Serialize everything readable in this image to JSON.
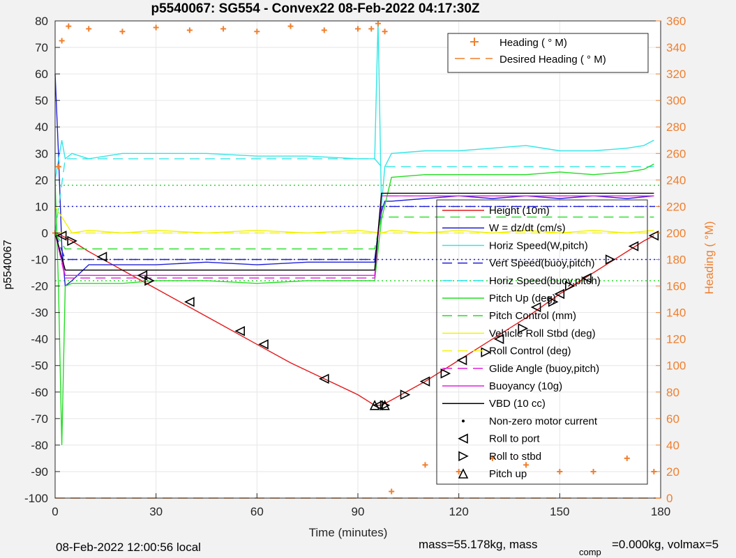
{
  "footer": {
    "local_time": "08-Feb-2022 12:00:56 local",
    "mass_text": "mass=55.178kg, mass",
    "comp_sub": "comp",
    "comp_text": "=0.000kg, volmax=5"
  },
  "chart_data": {
    "type": "line",
    "title": "p5540067: SG554 - Convex22 08-Feb-2022 04:17:30Z",
    "xlabel": "Time (minutes)",
    "ylabel": "p5540067",
    "y2label": "Heading (  °M)",
    "xlim": [
      0,
      180
    ],
    "ylim": [
      -100,
      80
    ],
    "y2lim": [
      0,
      360
    ],
    "xticks": [
      "0",
      "30",
      "60",
      "90",
      "120",
      "150",
      "180"
    ],
    "yticks": [
      "-100",
      "-90",
      "-80",
      "-70",
      "-60",
      "-50",
      "-40",
      "-30",
      "-20",
      "-10",
      "0",
      "10",
      "20",
      "30",
      "40",
      "50",
      "60",
      "70",
      "80"
    ],
    "y2ticks": [
      "0",
      "20",
      "40",
      "60",
      "80",
      "100",
      "120",
      "140",
      "160",
      "180",
      "200",
      "220",
      "240",
      "260",
      "280",
      "300",
      "320",
      "340",
      "360"
    ],
    "grid": true,
    "legend_top": [
      {
        "name": "Heading (  ° M)",
        "color": "#f07f2d",
        "style": "plus"
      },
      {
        "name": "Desired Heading (    ° M)",
        "color": "#f07f2d",
        "style": "dashed"
      }
    ],
    "legend": [
      {
        "name": "Height (10m)",
        "color": "#e31a1c",
        "style": "solid"
      },
      {
        "name": "W = dz/dt (cm/s)",
        "color": "#1f1fd6",
        "style": "solid"
      },
      {
        "name": "Horiz Speed(W,pitch)",
        "color": "#33e6e6",
        "style": "solid"
      },
      {
        "name": "Vert Speed(buoy,pitch)",
        "color": "#1f1fd6",
        "style": "dashed"
      },
      {
        "name": "Horiz Speed(buoy,pitch)",
        "color": "#33e6e6",
        "style": "dashed"
      },
      {
        "name": "Pitch Up (deg)",
        "color": "#22dd22",
        "style": "solid"
      },
      {
        "name": "Pitch Control (mm)",
        "color": "#22dd22",
        "style": "dashed"
      },
      {
        "name": "Vehicle Roll Stbd (deg)",
        "color": "#f2f200",
        "style": "solid"
      },
      {
        "name": "Roll Control (deg)",
        "color": "#f2f200",
        "style": "dashed"
      },
      {
        "name": "Glide Angle (buoy,pitch)",
        "color": "#e020e0",
        "style": "dashed"
      },
      {
        "name": "Buoyancy (10g)",
        "color": "#e020e0",
        "style": "solid"
      },
      {
        "name": "VBD (10 cc)",
        "color": "#000000",
        "style": "solid"
      },
      {
        "name": "Non-zero motor current",
        "color": "#000000",
        "style": "dot"
      },
      {
        "name": "Roll to port",
        "color": "#000000",
        "style": "tri-left"
      },
      {
        "name": "Roll to stbd",
        "color": "#000000",
        "style": "tri-right"
      },
      {
        "name": "Pitch up",
        "color": "#000000",
        "style": "tri-up"
      }
    ],
    "series": [
      {
        "name": "Height (10m)",
        "x": [
          0,
          2,
          5,
          10,
          20,
          30,
          40,
          50,
          60,
          70,
          80,
          90,
          95,
          97,
          100,
          110,
          120,
          130,
          140,
          150,
          160,
          170,
          175,
          178
        ],
        "y": [
          0,
          -1,
          -3,
          -7,
          -14,
          -21,
          -28,
          -35,
          -42,
          -49,
          -55,
          -61,
          -65,
          -65,
          -63,
          -56,
          -48,
          -40,
          -32,
          -23,
          -15,
          -7,
          -3,
          -1
        ]
      },
      {
        "name": "W = dz/dt (cm/s)",
        "x": [
          0,
          1,
          2,
          3,
          5,
          10,
          20,
          30,
          45,
          60,
          75,
          90,
          95,
          96,
          97,
          98,
          100,
          110,
          120,
          130,
          140,
          150,
          160,
          170,
          178
        ],
        "y": [
          60,
          30,
          -5,
          -20,
          -18,
          -12,
          -12,
          -12,
          -11,
          -12,
          -11,
          -11,
          -11,
          0,
          8,
          12,
          12,
          13,
          14,
          13,
          14,
          13,
          14,
          13,
          14
        ]
      },
      {
        "name": "Horiz Speed(W,pitch)",
        "x": [
          0,
          2,
          3,
          5,
          10,
          20,
          30,
          45,
          60,
          75,
          90,
          95,
          96,
          97,
          98,
          100,
          110,
          120,
          130,
          140,
          150,
          160,
          170,
          175,
          178
        ],
        "y": [
          20,
          35,
          28,
          30,
          28,
          30,
          30,
          30,
          29,
          29,
          28,
          28,
          80,
          10,
          25,
          30,
          31,
          31,
          32,
          33,
          31,
          31,
          32,
          33,
          35
        ]
      },
      {
        "name": "Vert Speed(buoy,pitch)",
        "x": [
          0,
          3,
          95,
          97,
          178
        ],
        "y": [
          0,
          -10,
          -10,
          10,
          10
        ]
      },
      {
        "name": "Horiz Speed(buoy,pitch)",
        "x": [
          0,
          3,
          95,
          97,
          178
        ],
        "y": [
          0,
          28,
          28,
          25,
          25
        ]
      },
      {
        "name": "Pitch Up (deg)",
        "x": [
          0,
          1,
          2,
          3,
          5,
          10,
          20,
          30,
          45,
          60,
          75,
          90,
          95,
          97,
          100,
          110,
          120,
          130,
          140,
          150,
          160,
          170,
          175,
          178
        ],
        "y": [
          20,
          -20,
          -80,
          -20,
          -19,
          -19,
          -19,
          -18,
          -18,
          -19,
          -18,
          -18,
          -18,
          5,
          21,
          22,
          22,
          22,
          22,
          23,
          22,
          23,
          24,
          26
        ]
      },
      {
        "name": "Pitch Control (mm)",
        "x": [
          0,
          3,
          95,
          97,
          178
        ],
        "y": [
          0,
          -6,
          -6,
          6,
          6
        ]
      },
      {
        "name": "Vehicle Roll Stbd (deg)",
        "x": [
          0,
          5,
          10,
          20,
          30,
          45,
          60,
          75,
          90,
          97,
          100,
          110,
          120,
          130,
          140,
          150,
          160,
          170,
          178
        ],
        "y": [
          10,
          0,
          1,
          0,
          1,
          0,
          1,
          0,
          1,
          0,
          1,
          0,
          1,
          0,
          1,
          0,
          1,
          0,
          1
        ]
      },
      {
        "name": "Roll Control (deg)",
        "x": [
          0,
          180
        ],
        "y": [
          0,
          0
        ]
      },
      {
        "name": "Glide Angle (buoy,pitch)",
        "x": [
          0,
          3,
          95,
          97,
          178
        ],
        "y": [
          0,
          -17,
          -17,
          14,
          14
        ]
      },
      {
        "name": "Buoyancy (10g)",
        "x": [
          0,
          3,
          95,
          97,
          178
        ],
        "y": [
          0,
          -16,
          -16,
          14,
          14
        ]
      },
      {
        "name": "VBD (10 cc)",
        "x": [
          0,
          3,
          95,
          97,
          178
        ],
        "y": [
          0,
          -14,
          -14,
          15,
          15
        ]
      },
      {
        "name": "Roll to port",
        "x": [
          2,
          14,
          26,
          40,
          55,
          62,
          80,
          96,
          110,
          121,
          132,
          143,
          150,
          158,
          172,
          178
        ],
        "y": [
          -1,
          -9,
          -16,
          -26,
          -37,
          -42,
          -55,
          -65,
          -56,
          -48,
          -40,
          -28,
          -23,
          -17,
          -5,
          -1
        ]
      },
      {
        "name": "Roll to stbd",
        "x": [
          5,
          28,
          98,
          104,
          116,
          128,
          139,
          148,
          153,
          165
        ],
        "y": [
          -3,
          -18,
          -65,
          -61,
          -53,
          -45,
          -36,
          -26,
          -20,
          -10
        ]
      },
      {
        "name": "Pitch up",
        "x": [
          95,
          98
        ],
        "y": [
          -65,
          -65
        ]
      }
    ],
    "reference_lines": [
      {
        "color": "#1f1fd6",
        "style": "dotted",
        "y": [
          -10,
          10
        ]
      },
      {
        "color": "#22dd22",
        "style": "dotted",
        "y": [
          -18,
          18
        ]
      }
    ],
    "heading": {
      "x": [
        0,
        1,
        2,
        4,
        10,
        20,
        30,
        40,
        50,
        60,
        70,
        80,
        90,
        94,
        96,
        98,
        100,
        110,
        120,
        130,
        140,
        150,
        160,
        170,
        178
      ],
      "y": [
        200,
        250,
        345,
        356,
        354,
        352,
        355,
        353,
        354,
        352,
        356,
        353,
        354,
        354,
        358,
        352,
        5,
        25,
        20,
        30,
        25,
        20,
        20,
        30,
        20
      ]
    },
    "desired_heading": {
      "value": 0
    }
  }
}
